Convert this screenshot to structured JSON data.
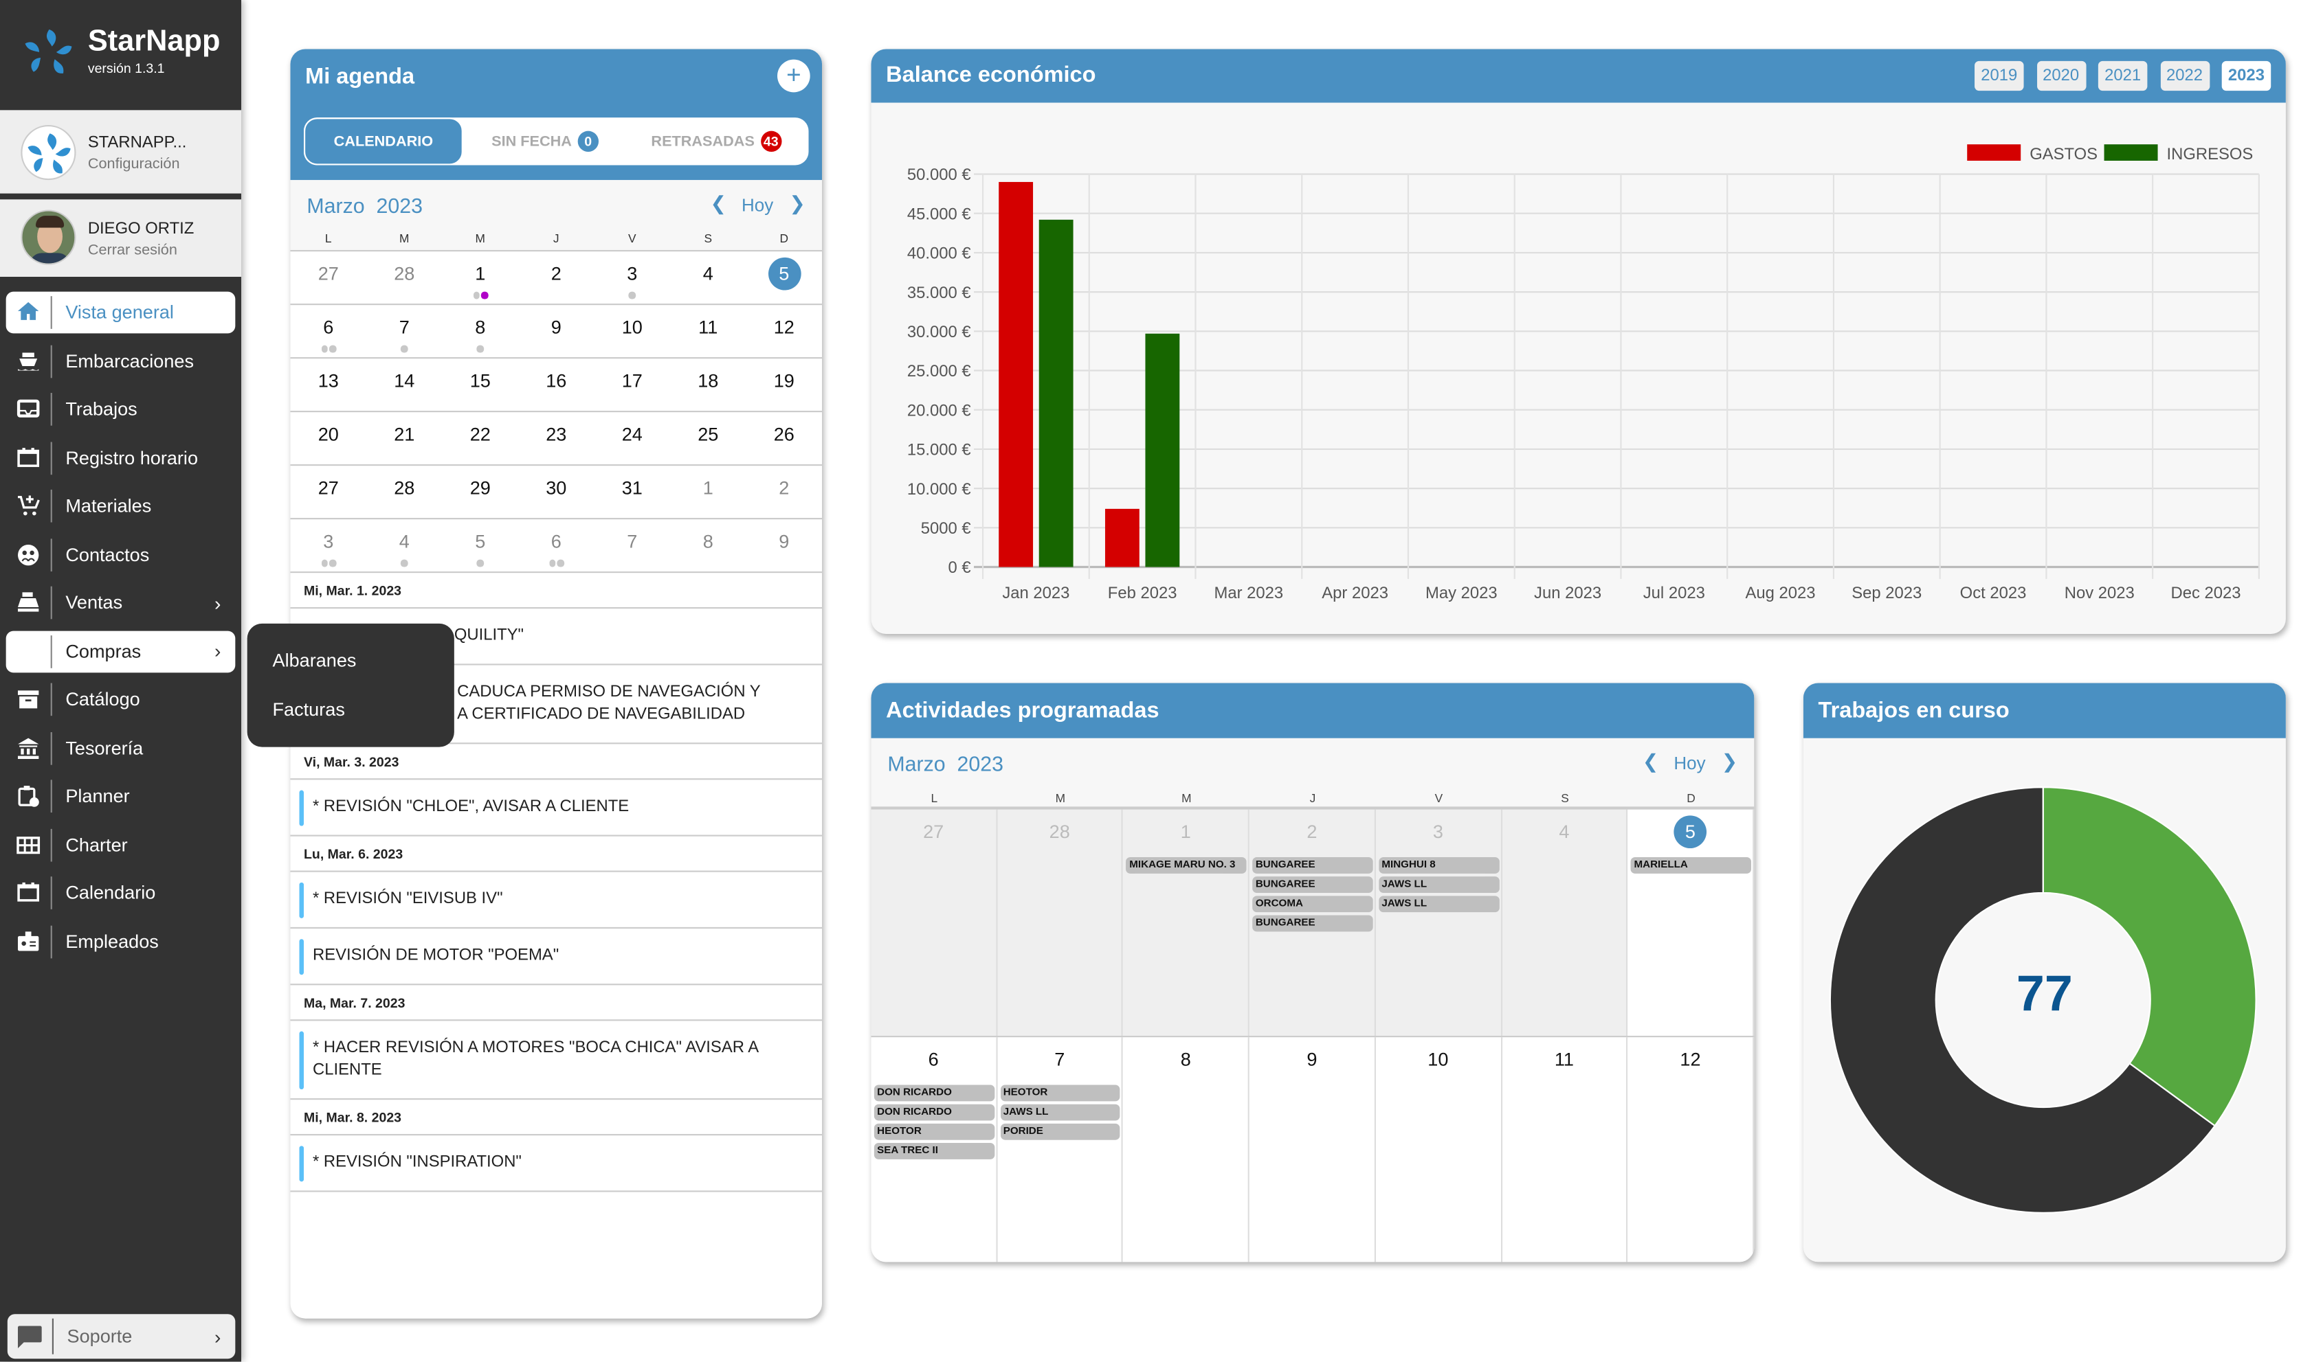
{
  "app": {
    "name": "StarNapp",
    "version": "versión 1.3.1"
  },
  "company": {
    "name": "STARNAPP...",
    "link": "Configuración"
  },
  "user": {
    "name": "DIEGO ORTIZ",
    "link": "Cerrar sesión"
  },
  "sidebar": {
    "items": [
      {
        "label": "Vista general",
        "icon": "home-icon",
        "active": true
      },
      {
        "label": "Embarcaciones",
        "icon": "ship-icon"
      },
      {
        "label": "Trabajos",
        "icon": "inbox-icon"
      },
      {
        "label": "Registro horario",
        "icon": "calendar-icon"
      },
      {
        "label": "Materiales",
        "icon": "cart-plus-icon"
      },
      {
        "label": "Contactos",
        "icon": "contacts-icon"
      },
      {
        "label": "Ventas",
        "icon": "cash-register-icon",
        "submenu": true
      },
      {
        "label": "Compras",
        "icon": "dollar-slash-icon",
        "submenu": true,
        "open": true
      },
      {
        "label": "Catálogo",
        "icon": "archive-icon"
      },
      {
        "label": "Tesorería",
        "icon": "bank-icon"
      },
      {
        "label": "Planner",
        "icon": "clipboard-clock-icon"
      },
      {
        "label": "Charter",
        "icon": "grid-icon"
      },
      {
        "label": "Calendario",
        "icon": "calendar-icon"
      },
      {
        "label": "Empleados",
        "icon": "id-badge-icon"
      }
    ],
    "support": "Soporte",
    "submenu": [
      "Albaranes",
      "Facturas"
    ]
  },
  "colors": {
    "primary": "#4a90c2",
    "sidebar": "#333333",
    "gastos": "#d40000",
    "ingresos": "#176600",
    "donut_green": "#56a840",
    "donut_dark": "#333333",
    "today": "#4a90c2",
    "badge_red": "#d40000",
    "event_bar": "#5bc0f8",
    "dot_gray": "#c8c8c8",
    "dot_purple": "#b000c8"
  },
  "agenda": {
    "title": "Mi agenda",
    "add_icon": "plus-icon",
    "tabs": [
      {
        "label": "CALENDARIO",
        "active": true
      },
      {
        "label": "SIN FECHA",
        "badge": "0"
      },
      {
        "label": "RETRASADAS",
        "badge": "43"
      }
    ],
    "month": "Marzo",
    "year": "2023",
    "today_label": "Hoy",
    "weekdays": [
      "L",
      "M",
      "M",
      "J",
      "V",
      "S",
      "D"
    ],
    "weeks": [
      [
        {
          "d": "27",
          "muted": true
        },
        {
          "d": "28",
          "muted": true
        },
        {
          "d": "1",
          "dots": [
            "gray",
            "purple"
          ]
        },
        {
          "d": "2"
        },
        {
          "d": "3",
          "dots": [
            "gray"
          ]
        },
        {
          "d": "4"
        },
        {
          "d": "5",
          "today": true
        }
      ],
      [
        {
          "d": "6",
          "dots": [
            "gray",
            "gray"
          ]
        },
        {
          "d": "7",
          "dots": [
            "gray"
          ]
        },
        {
          "d": "8",
          "dots": [
            "gray"
          ]
        },
        {
          "d": "9"
        },
        {
          "d": "10"
        },
        {
          "d": "11"
        },
        {
          "d": "12"
        }
      ],
      [
        {
          "d": "13"
        },
        {
          "d": "14"
        },
        {
          "d": "15"
        },
        {
          "d": "16"
        },
        {
          "d": "17"
        },
        {
          "d": "18"
        },
        {
          "d": "19"
        }
      ],
      [
        {
          "d": "20"
        },
        {
          "d": "21"
        },
        {
          "d": "22"
        },
        {
          "d": "23"
        },
        {
          "d": "24"
        },
        {
          "d": "25"
        },
        {
          "d": "26"
        }
      ],
      [
        {
          "d": "27"
        },
        {
          "d": "28"
        },
        {
          "d": "29"
        },
        {
          "d": "30"
        },
        {
          "d": "31"
        },
        {
          "d": "1",
          "muted": true
        },
        {
          "d": "2",
          "muted": true
        }
      ],
      [
        {
          "d": "3",
          "muted": true,
          "dots": [
            "gray",
            "gray"
          ]
        },
        {
          "d": "4",
          "muted": true,
          "dots": [
            "gray"
          ]
        },
        {
          "d": "5",
          "muted": true,
          "dots": [
            "gray"
          ]
        },
        {
          "d": "6",
          "muted": true,
          "dots": [
            "gray",
            "gray"
          ]
        },
        {
          "d": "7",
          "muted": true
        },
        {
          "d": "8",
          "muted": true
        },
        {
          "d": "9",
          "muted": true
        }
      ]
    ],
    "list": [
      {
        "type": "date",
        "text": "Mi, Mar. 1. 2023"
      },
      {
        "type": "item",
        "text": "QUILITY\"",
        "hidden_start": true
      },
      {
        "type": "item",
        "text": "CADUCA PERMISO DE NAVEGACIÓN Y",
        "text2": "A CERTIFICADO DE NAVEGABILIDAD",
        "hidden_start": true
      },
      {
        "type": "date",
        "text": "Vi, Mar. 3. 2023"
      },
      {
        "type": "item",
        "text": "* REVISIÓN \"CHLOE\", AVISAR A CLIENTE"
      },
      {
        "type": "date",
        "text": "Lu, Mar. 6. 2023"
      },
      {
        "type": "item",
        "text": "* REVISIÓN \"EIVISUB IV\""
      },
      {
        "type": "item",
        "text": "REVISIÓN DE MOTOR \"POEMA\""
      },
      {
        "type": "date",
        "text": "Ma, Mar. 7. 2023"
      },
      {
        "type": "item",
        "text": "* HACER REVISIÓN A MOTORES \"BOCA CHICA\" AVISAR A",
        "text2": "CLIENTE"
      },
      {
        "type": "date",
        "text": "Mi, Mar. 8. 2023"
      },
      {
        "type": "item",
        "text": "* REVISIÓN \"INSPIRATION\""
      }
    ]
  },
  "balance": {
    "title": "Balance económico",
    "years": [
      {
        "label": "2019"
      },
      {
        "label": "2020"
      },
      {
        "label": "2021"
      },
      {
        "label": "2022"
      },
      {
        "label": "2023",
        "active": true
      }
    ]
  },
  "chart_data": [
    {
      "type": "bar",
      "categories": [
        "Jan 2023",
        "Feb 2023",
        "Mar 2023",
        "Apr 2023",
        "May 2023",
        "Jun 2023",
        "Jul 2023",
        "Aug 2023",
        "Sep 2023",
        "Oct 2023",
        "Nov 2023",
        "Dec 2023"
      ],
      "series": [
        {
          "name": "GASTOS",
          "color": "#d40000",
          "values": [
            49000,
            7400,
            0,
            0,
            0,
            0,
            0,
            0,
            0,
            0,
            0,
            0
          ]
        },
        {
          "name": "INGRESOS",
          "color": "#176600",
          "values": [
            44200,
            29700,
            0,
            0,
            0,
            0,
            0,
            0,
            0,
            0,
            0,
            0
          ]
        }
      ],
      "yticks": [
        0,
        5000,
        10000,
        15000,
        20000,
        25000,
        30000,
        35000,
        40000,
        45000,
        50000
      ],
      "ytick_labels": [
        "0 €",
        "5000 €",
        "10.000 €",
        "15.000 €",
        "20.000 €",
        "25.000 €",
        "30.000 €",
        "35.000 €",
        "40.000 €",
        "45.000 €",
        "50.000 €"
      ],
      "ylim": [
        0,
        50000
      ],
      "grid": true,
      "legend": "top-right"
    },
    {
      "type": "pie",
      "donut": true,
      "center_label": "77",
      "segments": [
        {
          "value": 27,
          "color": "#56a840"
        },
        {
          "value": 50,
          "color": "#333333"
        }
      ]
    }
  ],
  "actividades": {
    "title": "Actividades programadas",
    "month": "Marzo",
    "year": "2023",
    "today_label": "Hoy",
    "weekdays": [
      "L",
      "M",
      "M",
      "J",
      "V",
      "S",
      "D"
    ],
    "weeks": [
      [
        {
          "d": "27",
          "past": true,
          "events": []
        },
        {
          "d": "28",
          "past": true,
          "events": []
        },
        {
          "d": "1",
          "past": true,
          "events": [
            "MIKAGE MARU NO. 3"
          ]
        },
        {
          "d": "2",
          "past": true,
          "events": [
            "BUNGAREE",
            "BUNGAREE",
            "ORCOMA",
            "BUNGAREE"
          ]
        },
        {
          "d": "3",
          "past": true,
          "events": [
            "MINGHUI 8",
            "JAWS LL",
            "JAWS LL"
          ]
        },
        {
          "d": "4",
          "past": true,
          "events": []
        },
        {
          "d": "5",
          "today": true,
          "events": [
            "MARIELLA"
          ]
        }
      ],
      [
        {
          "d": "6",
          "events": [
            "DON RICARDO",
            "DON RICARDO",
            "HEOTOR",
            "SEA TREC II"
          ]
        },
        {
          "d": "7",
          "events": [
            "HEOTOR",
            "JAWS LL",
            "PORIDE"
          ]
        },
        {
          "d": "8",
          "events": []
        },
        {
          "d": "9",
          "events": []
        },
        {
          "d": "10",
          "events": []
        },
        {
          "d": "11",
          "events": []
        },
        {
          "d": "12",
          "events": []
        }
      ]
    ]
  },
  "trabajos": {
    "title": "Trabajos en curso"
  }
}
